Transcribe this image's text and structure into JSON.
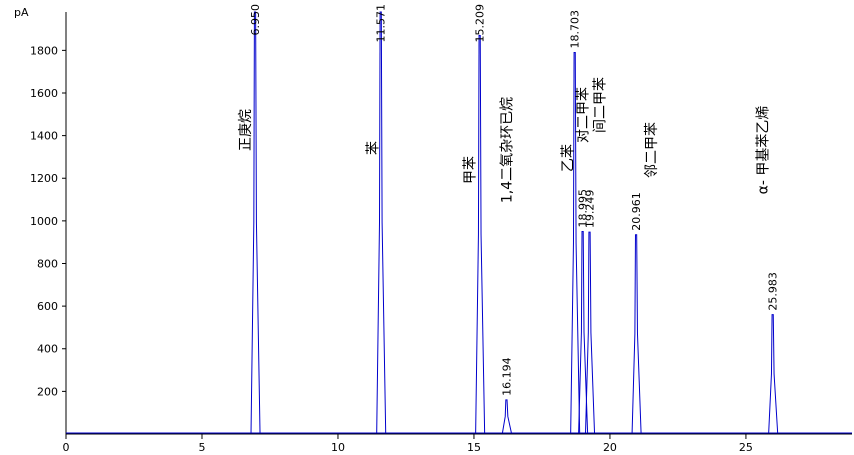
{
  "chart_data": {
    "type": "chromatogram",
    "y_unit": "pA",
    "xlim": [
      0,
      28.9
    ],
    "ylim": [
      0,
      1980
    ],
    "xticks": [
      0,
      5,
      10,
      15,
      20,
      25
    ],
    "yticks": [
      200,
      400,
      600,
      800,
      1000,
      1200,
      1400,
      1600,
      1800
    ],
    "color": "#0000cc",
    "peaks": [
      {
        "x": {
          "value": 6.95,
          "label": "6.950"
        },
        "height": 1980,
        "name": "正庚烷"
      },
      {
        "x": {
          "value": 11.571,
          "label": "11.571"
        },
        "height": 1980,
        "name": "苯"
      },
      {
        "x": {
          "value": 15.209,
          "label": "15.209"
        },
        "height": 1870,
        "name": "甲苯"
      },
      {
        "x": {
          "value": 16.194,
          "label": "16.194"
        },
        "height": 160,
        "name": "1,4二氧杂环已烷"
      },
      {
        "x": {
          "value": 18.703,
          "label": "18.703"
        },
        "height": 1790,
        "name": "乙苯"
      },
      {
        "x": {
          "value": 18.995,
          "label": "18.995"
        },
        "height": 950,
        "name": "对二甲苯"
      },
      {
        "x": {
          "value": 19.249,
          "label": "19.249"
        },
        "height": 947,
        "name": "间二甲苯"
      },
      {
        "x": {
          "value": 20.961,
          "label": "20.961"
        },
        "height": 935,
        "name": "邻二甲苯"
      },
      {
        "x": {
          "value": 25.983,
          "label": "25.983"
        },
        "height": 560,
        "name": "α- 甲基苯乙烯"
      }
    ]
  }
}
